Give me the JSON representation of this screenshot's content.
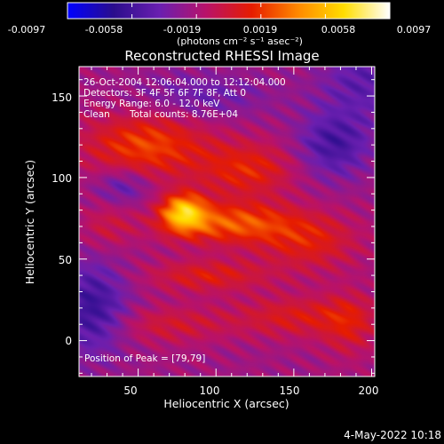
{
  "chart_data": {
    "type": "heatmap",
    "title": "Reconstructed RHESSI Image",
    "xlabel": "Heliocentric X (arcsec)",
    "ylabel": "Heliocentric Y (arcsec)",
    "xlim": [
      12,
      202
    ],
    "ylim": [
      -22,
      168
    ],
    "x_ticks": [
      50,
      100,
      150,
      200
    ],
    "y_ticks": [
      0,
      50,
      100,
      150
    ],
    "colorbar": {
      "range": [
        -0.0097,
        0.0097
      ],
      "tick_labels": [
        "-0.0097",
        "-0.0058",
        "-0.0019",
        "0.0019",
        "0.0058",
        "0.0097"
      ],
      "unit_label": "(photons cm⁻² s⁻¹ asec⁻²)",
      "colors": [
        "#0000ff",
        "#2a0d8c",
        "#6a1fb0",
        "#b8126a",
        "#e61c00",
        "#ff8800",
        "#ffdd00",
        "#ffffff"
      ]
    },
    "annotations": {
      "time_range": "26-Oct-2004 12:06:04.000 to 12:12:04.000",
      "detectors": "Detectors: 3F 4F 5F 6F 7F 8F, Att 0",
      "energy": "Energy Range: 6.0 - 12.0 keV",
      "method": "Clean",
      "counts": "Total counts: 8.76E+04",
      "peak": "Position of Peak = [79,79]"
    },
    "peak_position": [
      79,
      79
    ],
    "blobs": [
      {
        "x": 79,
        "y": 79,
        "sx": 10,
        "sy": 8,
        "amp": 0.0075
      },
      {
        "x": 110,
        "y": 72,
        "sx": 30,
        "sy": 9,
        "amp": 0.005
      },
      {
        "x": 55,
        "y": 120,
        "sx": 28,
        "sy": 14,
        "amp": 0.0045
      },
      {
        "x": 120,
        "y": 105,
        "sx": 22,
        "sy": 12,
        "amp": 0.0035
      },
      {
        "x": 160,
        "y": 60,
        "sx": 22,
        "sy": 12,
        "amp": 0.003
      },
      {
        "x": 150,
        "y": 15,
        "sx": 28,
        "sy": 9,
        "amp": 0.0028
      },
      {
        "x": 70,
        "y": 10,
        "sx": 26,
        "sy": 8,
        "amp": 0.0022
      },
      {
        "x": 185,
        "y": 10,
        "sx": 12,
        "sy": 14,
        "amp": 0.0025
      },
      {
        "x": 30,
        "y": 70,
        "sx": 12,
        "sy": 10,
        "amp": 0.0018
      },
      {
        "x": 95,
        "y": 40,
        "sx": 28,
        "sy": 7,
        "amp": 0.003
      },
      {
        "x": 175,
        "y": 120,
        "sx": 16,
        "sy": 14,
        "amp": -0.0035
      },
      {
        "x": 20,
        "y": 20,
        "sx": 16,
        "sy": 20,
        "amp": -0.004
      },
      {
        "x": 40,
        "y": 95,
        "sx": 12,
        "sy": 8,
        "amp": -0.0025
      },
      {
        "x": 90,
        "y": 150,
        "sx": 30,
        "sy": 10,
        "amp": -0.002
      },
      {
        "x": 195,
        "y": 160,
        "sx": 20,
        "sy": 18,
        "amp": -0.0025
      }
    ]
  },
  "footer": {
    "date": "4-May-2022 10:18"
  }
}
